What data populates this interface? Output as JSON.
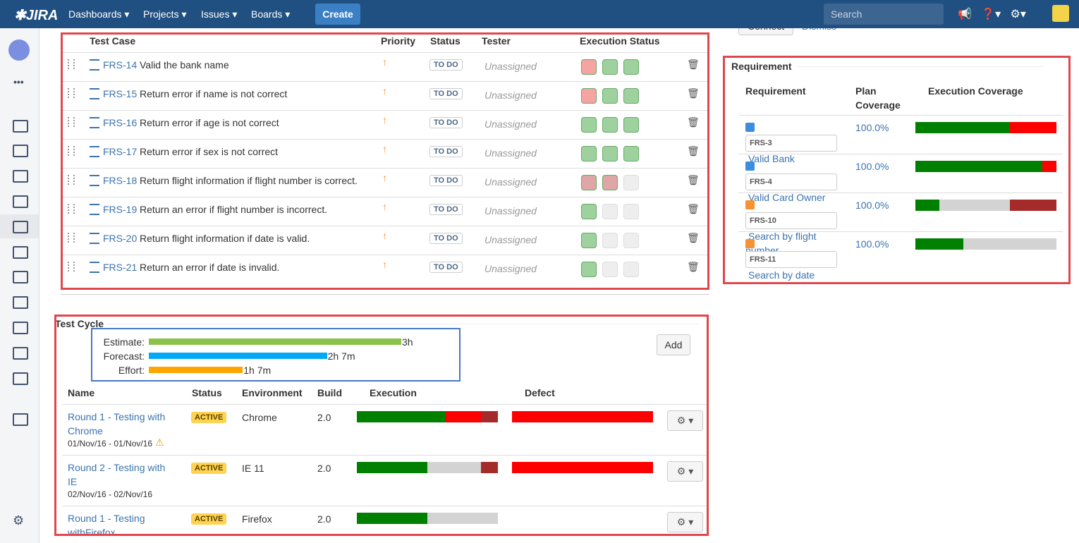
{
  "nav": {
    "items": [
      "Dashboards",
      "Projects",
      "Issues",
      "Boards"
    ],
    "create": "Create",
    "search": "Search"
  },
  "banner": {
    "connect": "Connect",
    "dismiss": "Dismiss"
  },
  "test_cases": {
    "headers": [
      "Test Case",
      "Priority",
      "Status",
      "Tester",
      "Execution Status"
    ],
    "rows": [
      {
        "key": "FRS-14",
        "summary": "Valid the bank name",
        "status": "TO DO",
        "tester": "Unassigned",
        "executions": [
          "#f5a3a3",
          "#9ed19e",
          "#9ed19e"
        ]
      },
      {
        "key": "FRS-15",
        "summary": "Return error if name is not correct",
        "status": "TO DO",
        "tester": "Unassigned",
        "executions": [
          "#f5a3a3",
          "#9ed19e",
          "#9ed19e"
        ]
      },
      {
        "key": "FRS-16",
        "summary": "Return error if age is not correct",
        "status": "TO DO",
        "tester": "Unassigned",
        "executions": [
          "#9ed19e",
          "#9ed19e",
          "#9ed19e"
        ]
      },
      {
        "key": "FRS-17",
        "summary": "Return error if sex is not correct",
        "status": "TO DO",
        "tester": "Unassigned",
        "executions": [
          "#9ed19e",
          "#9ed19e",
          "#9ed19e"
        ]
      },
      {
        "key": "FRS-18",
        "summary": "Return flight information if flight number is correct.",
        "status": "TO DO",
        "tester": "Unassigned",
        "executions": [
          "#dea6a6",
          "#dea6a6",
          "#eeeeee"
        ]
      },
      {
        "key": "FRS-19",
        "summary": "Return an error if flight number is incorrect.",
        "status": "TO DO",
        "tester": "Unassigned",
        "executions": [
          "#9ed19e",
          "#eeeeee",
          "#eeeeee"
        ]
      },
      {
        "key": "FRS-20",
        "summary": "Return flight information if date is valid.",
        "status": "TO DO",
        "tester": "Unassigned",
        "executions": [
          "#9ed19e",
          "#eeeeee",
          "#eeeeee"
        ]
      },
      {
        "key": "FRS-21",
        "summary": "Return an error if date is invalid.",
        "status": "TO DO",
        "tester": "Unassigned",
        "executions": [
          "#9ed19e",
          "#eeeeee",
          "#eeeeee"
        ]
      }
    ]
  },
  "requirement": {
    "title": "Requirement",
    "headers": [
      "Requirement",
      "Plan Coverage",
      "Execution Coverage"
    ],
    "rows": [
      {
        "key": "FRS-3",
        "name": "Valid Bank",
        "type_color": "#3b8ede",
        "plan": "100.0%",
        "coverage": [
          {
            "color": "#008000",
            "value": 67
          },
          {
            "color": "#ff0000",
            "value": 33
          }
        ]
      },
      {
        "key": "FRS-4",
        "name": "Valid Card Owner",
        "type_color": "#3b8ede",
        "plan": "100.0%",
        "coverage": [
          {
            "color": "#008000",
            "value": 90
          },
          {
            "color": "#ff0000",
            "value": 10
          }
        ]
      },
      {
        "key": "FRS-10",
        "name": "Search by flight number",
        "type_color": "#f79232",
        "plan": "100.0%",
        "coverage": [
          {
            "color": "#008000",
            "value": 17
          },
          {
            "color": "#d3d3d3",
            "value": 50
          },
          {
            "color": "#a52a2a",
            "value": 33
          }
        ]
      },
      {
        "key": "FRS-11",
        "name": "Search by date",
        "type_color": "#f79232",
        "plan": "100.0%",
        "coverage": [
          {
            "color": "#008000",
            "value": 34
          },
          {
            "color": "#d3d3d3",
            "value": 66
          }
        ]
      }
    ]
  },
  "test_cycle": {
    "title": "Test Cycle",
    "add": "Add",
    "timings": [
      {
        "label": "Estimate:",
        "minutes": 180,
        "text": "3h",
        "color": "#8bc34a"
      },
      {
        "label": "Forecast:",
        "minutes": 127,
        "text": "2h 7m",
        "color": "#03a9f4"
      },
      {
        "label": "Effort:",
        "minutes": 67,
        "text": "1h 7m",
        "color": "#ffa500"
      }
    ],
    "headers": [
      "Name",
      "Status",
      "Environment",
      "Build",
      "Execution",
      "Defect"
    ],
    "rows": [
      {
        "name": "Round 1 - Testing with Chrome",
        "dates": "01/Nov/16 - 01/Nov/16",
        "status": "ACTIVE",
        "environment": "Chrome",
        "build": "2.0",
        "execution": [
          {
            "color": "#008000",
            "value": 63
          },
          {
            "color": "#ff0000",
            "value": 25
          },
          {
            "color": "#a52a2a",
            "value": 12
          }
        ],
        "defect": [
          {
            "color": "#ff0000",
            "value": 100
          }
        ]
      },
      {
        "name": "Round 2 - Testing with IE",
        "dates": "02/Nov/16 - 02/Nov/16",
        "status": "ACTIVE",
        "environment": "IE 11",
        "build": "2.0",
        "execution": [
          {
            "color": "#008000",
            "value": 50
          },
          {
            "color": "#d3d3d3",
            "value": 38
          },
          {
            "color": "#a52a2a",
            "value": 12
          }
        ],
        "defect": [
          {
            "color": "#ff0000",
            "value": 100
          }
        ]
      },
      {
        "name": "Round 1 - Testing withFirefox",
        "status": "ACTIVE",
        "environment": "Firefox",
        "build": "2.0",
        "execution": [
          {
            "color": "#008000",
            "value": 50
          },
          {
            "color": "#d3d3d3",
            "value": 50
          }
        ],
        "defect": []
      }
    ]
  }
}
